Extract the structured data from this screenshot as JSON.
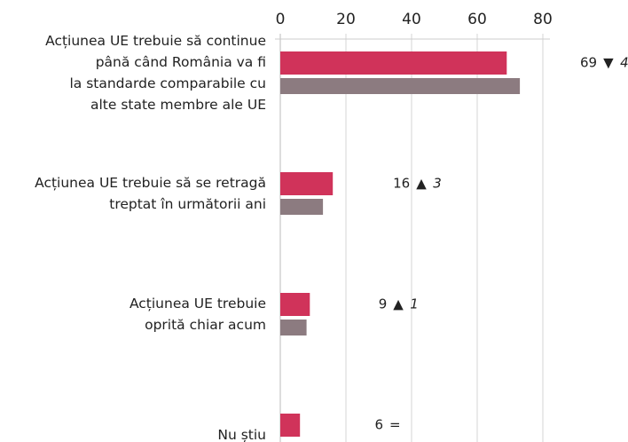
{
  "chart_data": {
    "type": "hbar",
    "categories": [
      "Acțiunea UE trebuie să continue\npână când România va fi\nla standarde comparabile cu\nalte state membre ale UE",
      "Acțiunea UE trebuie să se retragă\ntreptat în următorii ani",
      "Acțiunea UE trebuie\noprită chiar acum",
      "Nu știu"
    ],
    "series": [
      {
        "color": "#d0335a",
        "values": [
          69,
          16,
          9,
          6
        ]
      },
      {
        "color": "#8c7b80",
        "values": [
          73,
          13,
          8,
          null
        ]
      }
    ],
    "change_symbols": [
      "▼",
      "▲",
      "▲",
      "="
    ],
    "changes": [
      4,
      3,
      1,
      null
    ],
    "xlim": [
      0,
      80
    ],
    "xticks": [
      0,
      20,
      40,
      60,
      80
    ],
    "grid": true
  }
}
